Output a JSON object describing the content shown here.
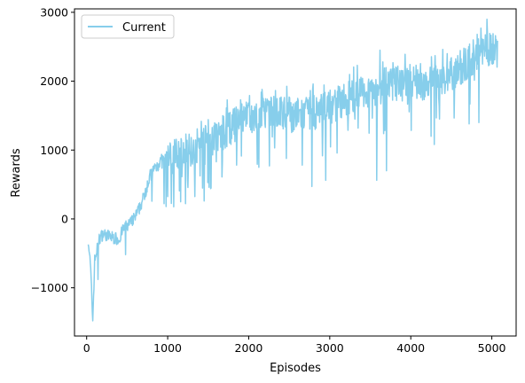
{
  "chart_data": {
    "type": "line",
    "title": "",
    "xlabel": "Episodes",
    "ylabel": "Rewards",
    "xlim": [
      -150,
      5300
    ],
    "ylim": [
      -1700,
      3050
    ],
    "xticks": [
      0,
      1000,
      2000,
      3000,
      4000,
      5000
    ],
    "yticks": [
      -1000,
      0,
      1000,
      2000,
      3000
    ],
    "xtick_labels": [
      "0",
      "1000",
      "2000",
      "3000",
      "4000",
      "5000"
    ],
    "ytick_labels": [
      "−1000",
      "0",
      "1000",
      "2000",
      "3000"
    ],
    "grid": false,
    "legend_position": "upper-left",
    "series": [
      {
        "name": "Current",
        "color": "#87ceeb",
        "trend": [
          [
            20,
            -280
          ],
          [
            50,
            -750
          ],
          [
            75,
            -1480
          ],
          [
            100,
            -600
          ],
          [
            150,
            -300
          ],
          [
            200,
            -220
          ],
          [
            300,
            -260
          ],
          [
            400,
            -300
          ],
          [
            450,
            -150
          ],
          [
            500,
            -100
          ],
          [
            550,
            -50
          ],
          [
            600,
            30
          ],
          [
            650,
            150
          ],
          [
            700,
            300
          ],
          [
            750,
            520
          ],
          [
            800,
            650
          ],
          [
            850,
            760
          ],
          [
            900,
            820
          ],
          [
            1000,
            880
          ],
          [
            1100,
            930
          ],
          [
            1200,
            980
          ],
          [
            1300,
            1030
          ],
          [
            1400,
            1080
          ],
          [
            1500,
            1130
          ],
          [
            1600,
            1190
          ],
          [
            1700,
            1260
          ],
          [
            1800,
            1340
          ],
          [
            1900,
            1420
          ],
          [
            2000,
            1450
          ],
          [
            2100,
            1480
          ],
          [
            2200,
            1500
          ],
          [
            2300,
            1520
          ],
          [
            2400,
            1530
          ],
          [
            2500,
            1520
          ],
          [
            2600,
            1500
          ],
          [
            2700,
            1510
          ],
          [
            2800,
            1540
          ],
          [
            2900,
            1580
          ],
          [
            3000,
            1620
          ],
          [
            3100,
            1680
          ],
          [
            3200,
            1730
          ],
          [
            3300,
            1780
          ],
          [
            3400,
            1830
          ],
          [
            3500,
            1880
          ],
          [
            3600,
            1910
          ],
          [
            3700,
            1940
          ],
          [
            3800,
            1960
          ],
          [
            3900,
            1970
          ],
          [
            4000,
            1990
          ],
          [
            4100,
            1990
          ],
          [
            4200,
            1960
          ],
          [
            4300,
            1980
          ],
          [
            4400,
            2030
          ],
          [
            4500,
            2100
          ],
          [
            4600,
            2180
          ],
          [
            4700,
            2280
          ],
          [
            4800,
            2380
          ],
          [
            4900,
            2450
          ],
          [
            5000,
            2480
          ],
          [
            5060,
            2450
          ]
        ],
        "spikes": [
          [
            75,
            -1480
          ],
          [
            140,
            -880
          ],
          [
            480,
            -520
          ],
          [
            1220,
            220
          ],
          [
            1450,
            260
          ],
          [
            2780,
            470
          ],
          [
            2950,
            560
          ],
          [
            3580,
            560
          ],
          [
            3700,
            700
          ],
          [
            4290,
            1080
          ],
          [
            4720,
            1380
          ],
          [
            4840,
            1400
          ],
          [
            2320,
            1030
          ],
          [
            1850,
            780
          ],
          [
            2660,
            780
          ],
          [
            4250,
            1200
          ]
        ],
        "peaks": [
          [
            4940,
            2900
          ],
          [
            4820,
            2680
          ],
          [
            4300,
            2370
          ],
          [
            3340,
            2230
          ],
          [
            4100,
            2100
          ],
          [
            3620,
            2450
          ]
        ],
        "x_end": 5070
      }
    ]
  }
}
